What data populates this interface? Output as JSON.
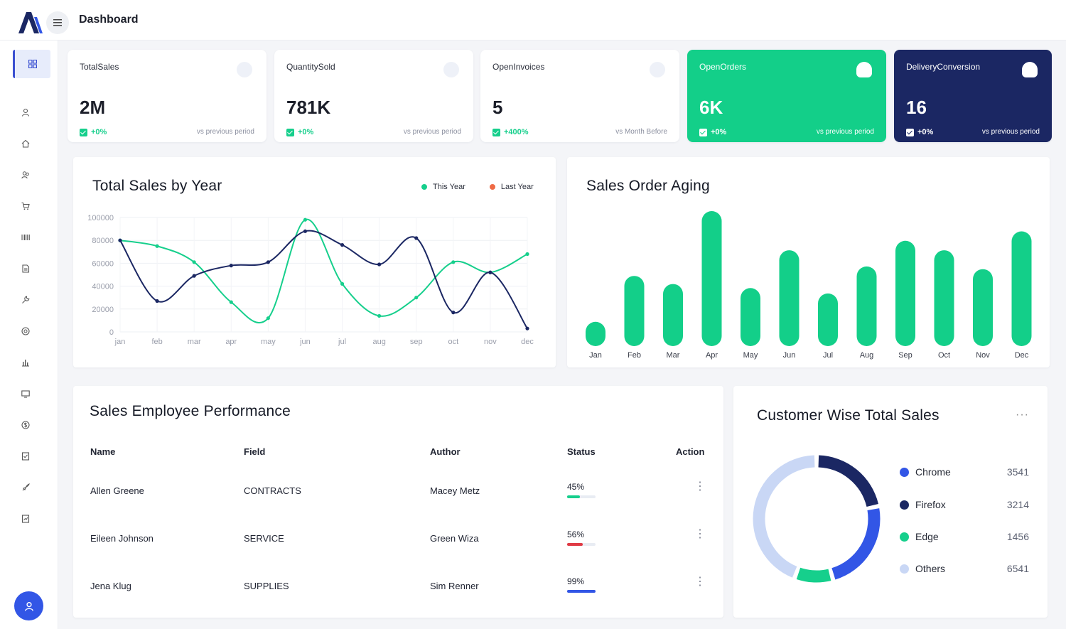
{
  "header": {
    "title": "Dashboard"
  },
  "kpis": [
    {
      "title": "TotalSales",
      "value": "2M",
      "change": "+0%",
      "period": "vs previous period"
    },
    {
      "title": "QuantitySold",
      "value": "781K",
      "change": "+0%",
      "period": "vs previous period"
    },
    {
      "title": "OpenInvoices",
      "value": "5",
      "change": "+400%",
      "period": "vs Month Before"
    },
    {
      "title": "OpenOrders",
      "value": "6K",
      "change": "+0%",
      "period": "vs previous period"
    },
    {
      "title": "DeliveryConversion",
      "value": "16",
      "change": "+0%",
      "period": "vs previous period"
    }
  ],
  "colors": {
    "green": "#13cf89",
    "navy": "#1b2763",
    "blue": "#3256e6",
    "light_blue": "#c9d7f5",
    "red": "#e03b45"
  },
  "chart_data": [
    {
      "type": "line",
      "title": "Total Sales by Year",
      "categories": [
        "jan",
        "feb",
        "mar",
        "apr",
        "may",
        "jun",
        "jul",
        "aug",
        "sep",
        "oct",
        "nov",
        "dec"
      ],
      "y_ticks": [
        "100000",
        "80000",
        "60000",
        "40000",
        "20000",
        "0"
      ],
      "ylim": [
        0,
        100000
      ],
      "series": [
        {
          "name": "This Year",
          "color": "#16cf8c",
          "values": [
            80000,
            75000,
            61000,
            26000,
            12000,
            98000,
            42000,
            14000,
            30000,
            61000,
            52000,
            68000
          ]
        },
        {
          "name": "Last Year",
          "color": "#1b2763",
          "values": [
            80000,
            27000,
            49000,
            58000,
            61000,
            88000,
            76000,
            59000,
            82000,
            17000,
            52000,
            3000
          ]
        }
      ],
      "legend": [
        {
          "name": "This Year",
          "color": "#16cf8c"
        },
        {
          "name": "Last Year",
          "color": "#ef6a45"
        }
      ]
    },
    {
      "type": "bar",
      "title": "Sales Order Aging",
      "categories": [
        "Jan",
        "Feb",
        "Mar",
        "Apr",
        "May",
        "Jun",
        "Jul",
        "Aug",
        "Sep",
        "Oct",
        "Nov",
        "Dec"
      ],
      "values": [
        18,
        52,
        46,
        100,
        43,
        71,
        39,
        59,
        78,
        71,
        57,
        85
      ],
      "ylim": [
        0,
        100
      ]
    },
    {
      "type": "pie",
      "title": "Customer Wise Total Sales",
      "labels": [
        "Chrome",
        "Firefox",
        "Edge",
        "Others"
      ],
      "values": [
        3541,
        3214,
        1456,
        6541
      ],
      "colors": [
        "#3256e6",
        "#1b2763",
        "#16cf8c",
        "#c9d7f5"
      ]
    }
  ],
  "sales_chart": {
    "title": "Total Sales by Year",
    "legend": [
      {
        "name": "This Year"
      },
      {
        "name": "Last Year"
      }
    ],
    "y_ticks": [
      "100000",
      "80000",
      "60000",
      "40000",
      "20000",
      "0"
    ],
    "x_ticks": [
      "jan",
      "feb",
      "mar",
      "apr",
      "may",
      "jun",
      "jul",
      "aug",
      "sep",
      "oct",
      "nov",
      "dec"
    ]
  },
  "aging_chart": {
    "title": "Sales Order Aging"
  },
  "employee_table": {
    "title": "Sales Employee Performance",
    "columns": [
      "Name",
      "Field",
      "Author",
      "Status",
      "Action"
    ],
    "rows": [
      {
        "name": "Allen Greene",
        "field": "CONTRACTS",
        "author": "Macey Metz",
        "status": "45%",
        "progress": 0.45,
        "color": "#16cf8c"
      },
      {
        "name": "Eileen Johnson",
        "field": "SERVICE",
        "author": "Green Wiza",
        "status": "56%",
        "progress": 0.56,
        "color": "#e03b45"
      },
      {
        "name": "Jena Klug",
        "field": "SUPPLIES",
        "author": "Sim Renner",
        "status": "99%",
        "progress": 0.99,
        "color": "#3256e6"
      }
    ]
  },
  "customer_sales": {
    "title": "Customer Wise Total Sales",
    "items": [
      {
        "name": "Chrome",
        "value": "3541",
        "color": "#3256e6"
      },
      {
        "name": "Firefox",
        "value": "3214",
        "color": "#1b2763"
      },
      {
        "name": "Edge",
        "value": "1456",
        "color": "#16cf8c"
      },
      {
        "name": "Others",
        "value": "6541",
        "color": "#c9d7f5"
      }
    ]
  },
  "sidebar": {
    "icons": [
      "dashboard-icon",
      "user-icon",
      "home-icon",
      "users-icon",
      "cart-icon",
      "barcode-icon",
      "document-icon",
      "wrench-icon",
      "support-icon",
      "bar-chart-icon",
      "monitor-icon",
      "money-icon",
      "invoice-icon",
      "rocket-icon",
      "report-icon"
    ]
  }
}
